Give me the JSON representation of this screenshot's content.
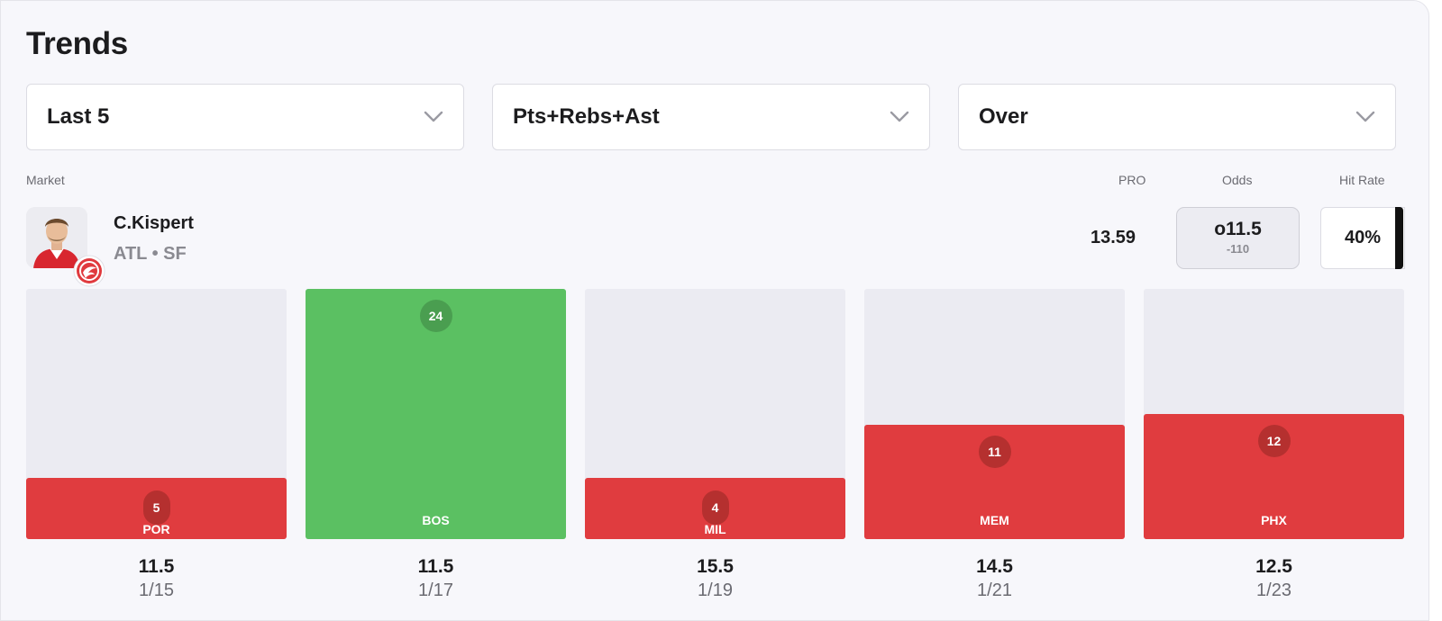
{
  "title": "Trends",
  "filters": [
    {
      "value": "Last 5",
      "icon": "chevron-down-icon"
    },
    {
      "value": "Pts+Rebs+Ast",
      "icon": "chevron-down-icon"
    },
    {
      "value": "Over",
      "icon": "chevron-down-icon"
    }
  ],
  "columns": {
    "market": "Market",
    "pro": "PRO",
    "odds": "Odds",
    "hit_rate": "Hit Rate"
  },
  "player": {
    "name": "C.Kispert",
    "meta": "ATL • SF",
    "avatar_icon": "player-headshot",
    "team_logo_icon": "atlanta-hawks-logo-icon"
  },
  "pro_value": "13.59",
  "odds": {
    "line": "o11.5",
    "price": "-110"
  },
  "hit_rate": "40%",
  "colors": {
    "hit": "#5bc062",
    "miss": "#e03c3f",
    "track": "#ebebf2"
  },
  "chart_data": {
    "type": "bar",
    "categories": [
      "POR",
      "BOS",
      "MIL",
      "MEM",
      "PHX"
    ],
    "values": [
      5,
      24,
      4,
      11,
      12
    ],
    "lines": [
      11.5,
      11.5,
      15.5,
      14.5,
      12.5
    ],
    "dates": [
      "1/15",
      "1/17",
      "1/19",
      "1/21",
      "1/23"
    ],
    "result": [
      "miss",
      "hit",
      "miss",
      "miss",
      "miss"
    ],
    "ylim": [
      0,
      24
    ]
  },
  "games": [
    {
      "value_label": "5",
      "opponent": "POR",
      "line": "11.5",
      "date": "1/15"
    },
    {
      "value_label": "24",
      "opponent": "BOS",
      "line": "11.5",
      "date": "1/17"
    },
    {
      "value_label": "4",
      "opponent": "MIL",
      "line": "15.5",
      "date": "1/19"
    },
    {
      "value_label": "11",
      "opponent": "MEM",
      "line": "14.5",
      "date": "1/21"
    },
    {
      "value_label": "12",
      "opponent": "PHX",
      "line": "12.5",
      "date": "1/23"
    }
  ]
}
